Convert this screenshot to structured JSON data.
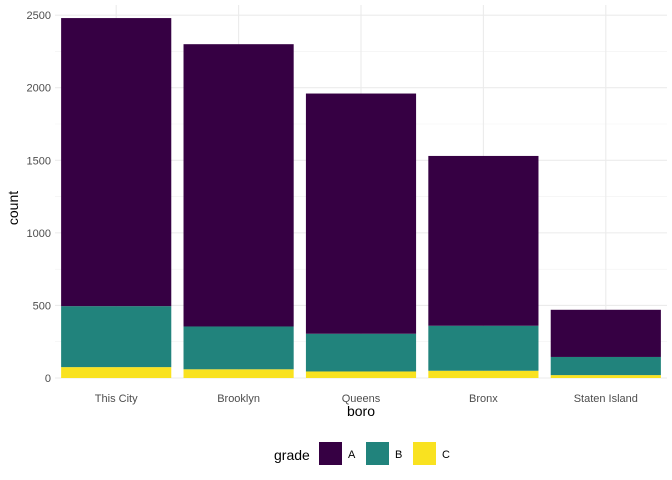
{
  "chart_data": {
    "type": "bar",
    "stacked": true,
    "categories": [
      "This City",
      "Brooklyn",
      "Queens",
      "Bronx",
      "Staten Island"
    ],
    "series": [
      {
        "name": "A",
        "color": "#360043",
        "values": [
          1985,
          1945,
          1655,
          1170,
          325
        ]
      },
      {
        "name": "B",
        "color": "#21837c",
        "values": [
          420,
          295,
          260,
          310,
          125
        ]
      },
      {
        "name": "C",
        "color": "#f9e220",
        "values": [
          75,
          60,
          45,
          50,
          20
        ]
      }
    ],
    "xlabel": "boro",
    "ylabel": "count",
    "ylim": [
      0,
      2570
    ],
    "yticks": [
      0,
      500,
      1000,
      1500,
      2000,
      2500
    ],
    "ytick_labels": [
      "0",
      "500",
      "1000",
      "1500",
      "2000",
      "2500"
    ],
    "legend": {
      "title": "grade",
      "position": "bottom"
    },
    "grid": true
  }
}
